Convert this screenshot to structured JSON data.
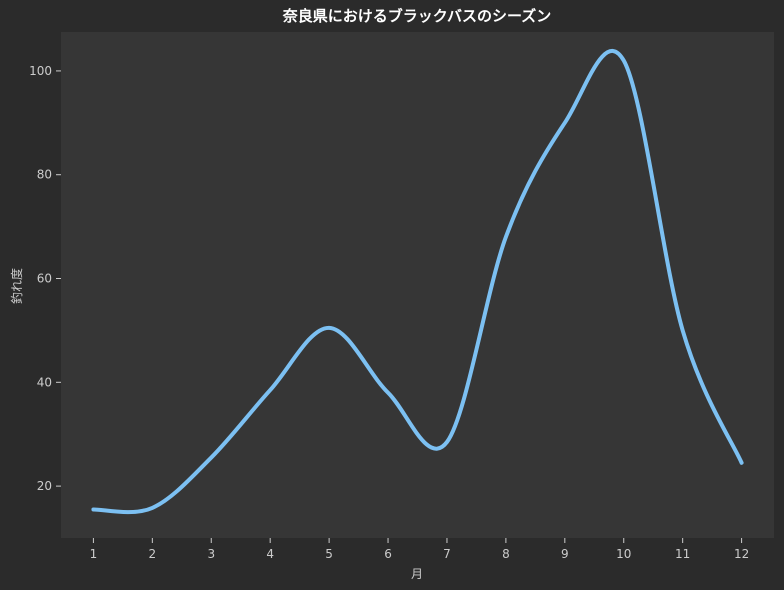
{
  "chart_data": {
    "type": "line",
    "title": "奈良県におけるブラックバスのシーズン",
    "xlabel": "月",
    "ylabel": "釣れ度",
    "x": [
      1,
      2,
      3,
      4,
      5,
      6,
      7,
      8,
      9,
      10,
      11,
      12
    ],
    "x_tick_labels": [
      "1",
      "2",
      "3",
      "4",
      "5",
      "6",
      "7",
      "8",
      "9",
      "10",
      "11",
      "12"
    ],
    "y_ticks": [
      20,
      40,
      60,
      80,
      100
    ],
    "y_tick_labels": [
      "20",
      "40",
      "60",
      "80",
      "100"
    ],
    "xlim": [
      0.45,
      12.55
    ],
    "ylim": [
      10,
      107.5
    ],
    "grid": false,
    "legend": false,
    "series": [
      {
        "color": "#7cc0f2",
        "curve": "smooth",
        "values": [
          15.5,
          15.8,
          25.5,
          38.5,
          50.5,
          38,
          28.5,
          68,
          90,
          102,
          50,
          24.5
        ]
      }
    ],
    "colors": {
      "figure_background": "#2b2b2b",
      "plot_background": "#363636",
      "text": "#cccccc",
      "title": "#ffffff"
    }
  }
}
